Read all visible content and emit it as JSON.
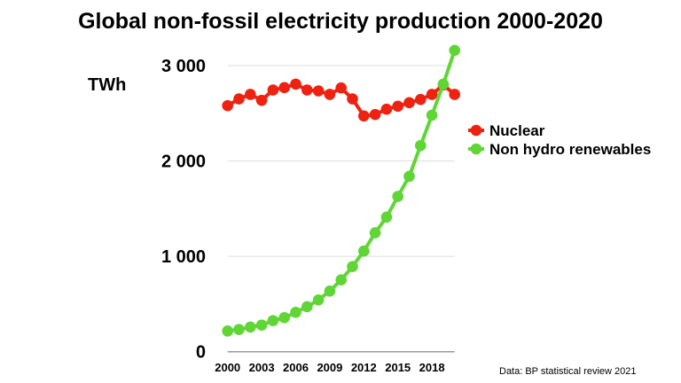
{
  "chart_data": {
    "type": "line",
    "title": "Global non-fossil electricity production 2000-2020",
    "ylabel": "TWh",
    "xlabel": "",
    "ylim": [
      0,
      3000
    ],
    "xlim": [
      2000,
      2020
    ],
    "yticks": [
      0,
      1000,
      2000,
      3000
    ],
    "ytick_labels": [
      "0",
      "1 000",
      "2 000",
      "3 000"
    ],
    "xtick_labels": [
      "2000",
      "2003",
      "2006",
      "2009",
      "2012",
      "2015",
      "2018"
    ],
    "xticks": [
      2000,
      2003,
      2006,
      2009,
      2012,
      2015,
      2018
    ],
    "grid": true,
    "legend_placement": "right",
    "x": [
      2000,
      2001,
      2002,
      2003,
      2004,
      2005,
      2006,
      2007,
      2008,
      2009,
      2010,
      2011,
      2012,
      2013,
      2014,
      2015,
      2016,
      2017,
      2018,
      2019,
      2020
    ],
    "series": [
      {
        "name": "Nuclear",
        "color": "#ee2211",
        "values": [
          2580,
          2651,
          2698,
          2636,
          2744,
          2769,
          2806,
          2744,
          2735,
          2698,
          2766,
          2651,
          2472,
          2487,
          2543,
          2574,
          2611,
          2645,
          2698,
          2797,
          2698
        ]
      },
      {
        "name": "Non hydro renewables",
        "color": "#5fd636",
        "values": [
          217,
          233,
          258,
          279,
          326,
          357,
          413,
          472,
          543,
          636,
          753,
          893,
          1055,
          1247,
          1411,
          1628,
          1839,
          2162,
          2480,
          2805,
          3160
        ]
      }
    ],
    "annotation": "Data:  BP statistical review 2021"
  }
}
